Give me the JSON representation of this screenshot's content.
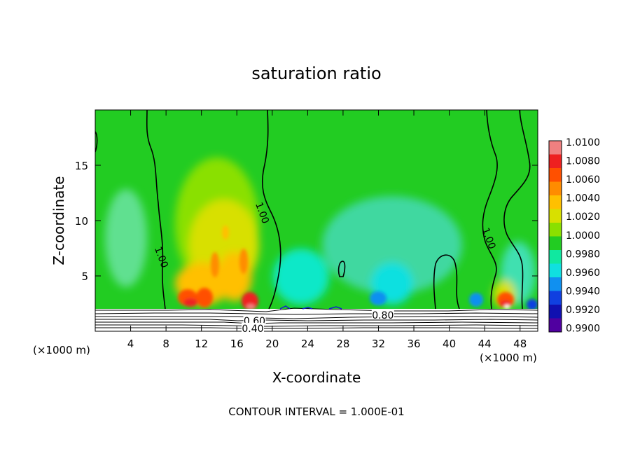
{
  "chart_data": {
    "type": "heatmap",
    "title": "saturation ratio",
    "xlabel": "X-coordinate",
    "ylabel": "Z-coordinate",
    "x_unit_left": "(×1000 m)",
    "x_unit_right": "(×1000 m)",
    "footer": "CONTOUR INTERVAL = 1.000E-01",
    "xlim": [
      0,
      50
    ],
    "ylim": [
      0,
      20
    ],
    "x_ticks": [
      4,
      8,
      12,
      16,
      20,
      24,
      28,
      32,
      36,
      40,
      44,
      48
    ],
    "y_ticks": [
      5,
      10,
      15
    ],
    "colorbar": {
      "labels": [
        "1.0100",
        "1.0080",
        "1.0060",
        "1.0040",
        "1.0020",
        "1.0000",
        "0.9980",
        "0.9960",
        "0.9940",
        "0.9920",
        "0.9900"
      ],
      "colors": [
        "#f08080",
        "#ee2020",
        "#ff5000",
        "#ff8c00",
        "#ffc000",
        "#d8e000",
        "#8ae000",
        "#22cc22",
        "#10e8a0",
        "#10e0e0",
        "#1090f0",
        "#1040e0",
        "#1010b0",
        "#5000a0"
      ]
    },
    "contour_labels": [
      {
        "text": "1.00",
        "x": 7.5,
        "z": 6.7
      },
      {
        "text": "1.00",
        "x": 18.9,
        "z": 10.7
      },
      {
        "text": "1.00",
        "x": 44.5,
        "z": 8.4
      },
      {
        "text": "0.80",
        "x": 32.5,
        "z": 1.4
      },
      {
        "text": "0.60",
        "x": 18.0,
        "z": 0.9
      },
      {
        "text": "0.40",
        "x": 17.8,
        "z": 0.2
      }
    ]
  }
}
